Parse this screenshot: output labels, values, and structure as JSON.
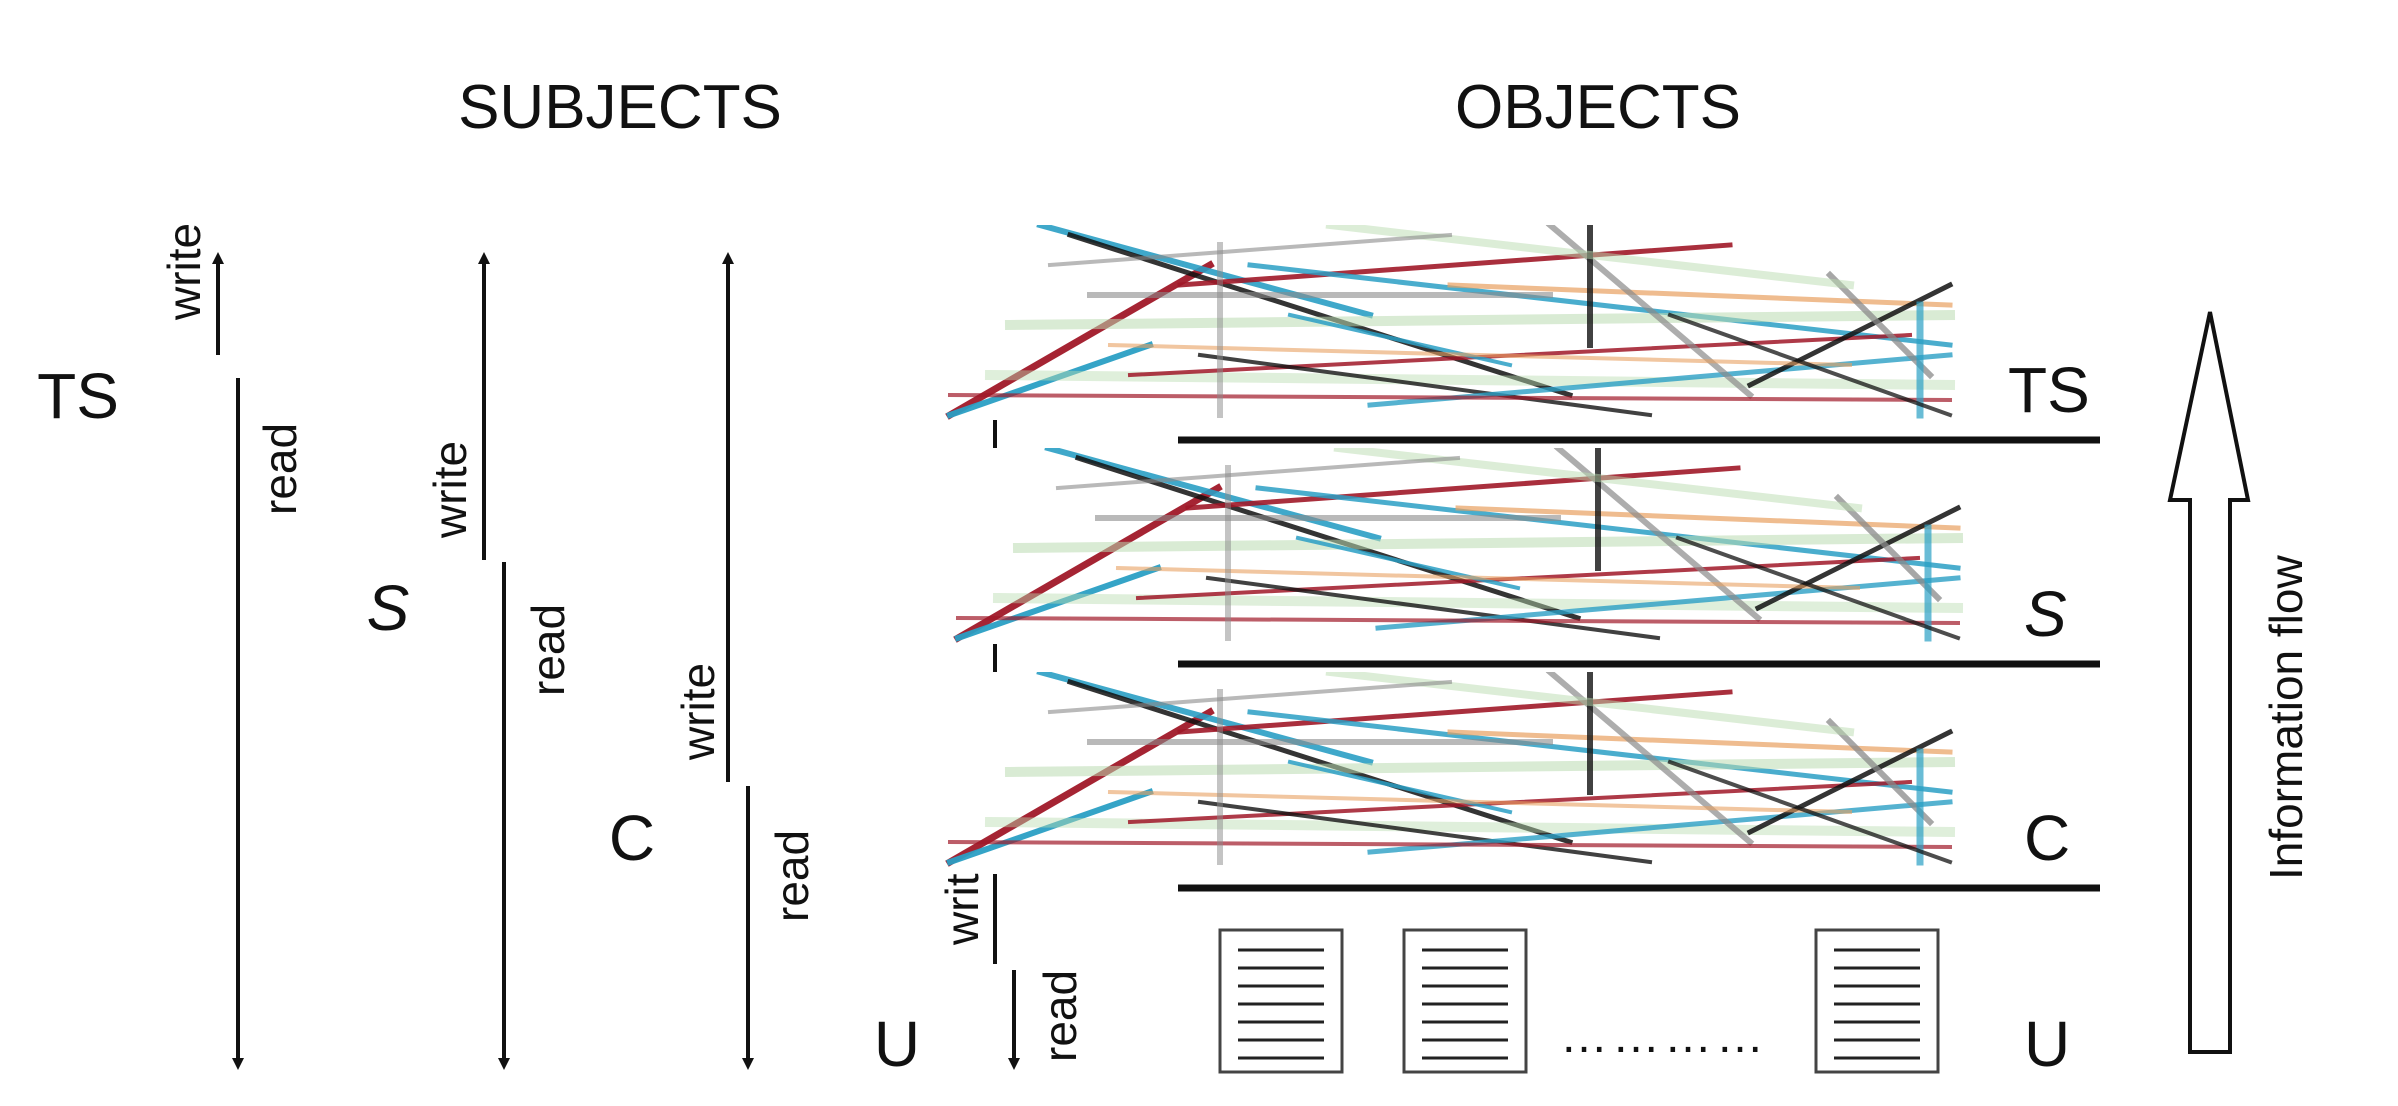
{
  "headers": {
    "subjects": "SUBJECTS",
    "objects": "OBJECTS"
  },
  "subject_levels": {
    "ts": "TS",
    "s": "S",
    "c": "C",
    "u": "U"
  },
  "object_levels": {
    "ts": "TS",
    "s": "S",
    "c": "C",
    "u": "U"
  },
  "arrows": {
    "write": "write",
    "read": "read",
    "write_truncated": "writ"
  },
  "information_flow": "Information flow",
  "ellipsis": "…………",
  "colors": {
    "line": "#111111",
    "blue": "#2a9fc4",
    "red": "#a01828",
    "grey": "#8a8a8a",
    "green": "#b9dbb0",
    "orange": "#e8a060"
  }
}
